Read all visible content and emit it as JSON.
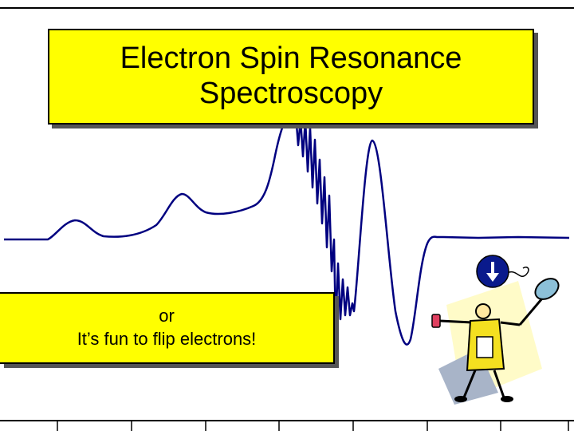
{
  "title": {
    "line1": "Electron Spin Resonance",
    "line2": "Spectroscopy"
  },
  "subtitle": {
    "line1": "or",
    "line2": "It’s fun to flip electrons!"
  },
  "colors": {
    "spectrum": "#000080",
    "highlight_box": "#ffff00",
    "spin_badge": "#0a1a8c"
  },
  "icons": {
    "spin_down": "arrow-down-icon",
    "mascot": "scientist-mascot-icon"
  }
}
